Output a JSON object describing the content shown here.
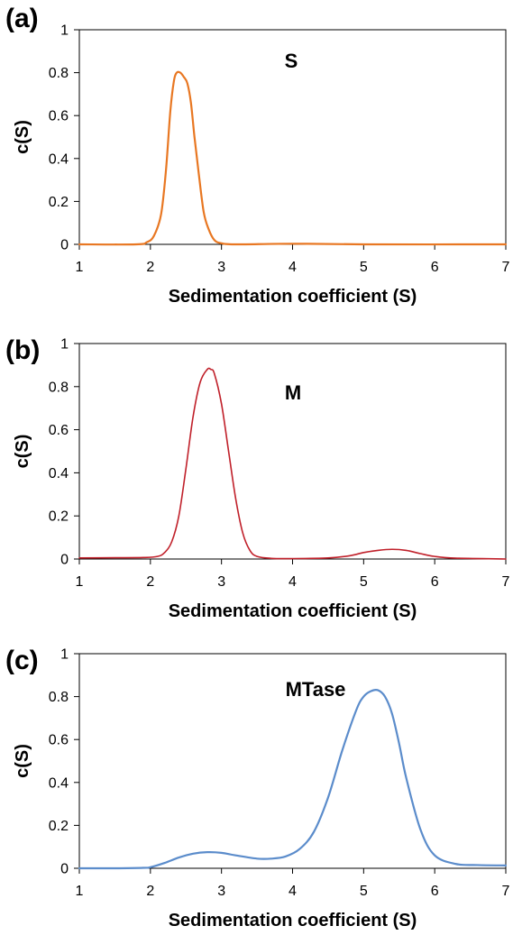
{
  "chart_data": [
    {
      "type": "line",
      "panel_label": "(a)",
      "annotation": "S",
      "xlabel": "Sedimentation coefficient (S)",
      "ylabel": "c(S)",
      "xlim": [
        1,
        7
      ],
      "ylim": [
        0,
        1
      ],
      "x_ticks": [
        "1",
        "2",
        "3",
        "4",
        "5",
        "6",
        "7"
      ],
      "y_ticks": [
        "0",
        "0.2",
        "0.4",
        "0.6",
        "0.8",
        "1"
      ],
      "grid": false,
      "series": [
        {
          "color": "#E87722",
          "line_width": 2.2,
          "x": [
            1.0,
            1.8,
            1.95,
            2.05,
            2.15,
            2.22,
            2.28,
            2.33,
            2.37,
            2.42,
            2.47,
            2.52,
            2.57,
            2.62,
            2.68,
            2.75,
            2.82,
            2.9,
            3.0,
            3.2,
            4.0,
            5.0,
            7.0
          ],
          "y": [
            0.0,
            0.0,
            0.01,
            0.04,
            0.14,
            0.35,
            0.62,
            0.76,
            0.8,
            0.8,
            0.78,
            0.75,
            0.66,
            0.5,
            0.33,
            0.15,
            0.07,
            0.02,
            0.005,
            0.0,
            0.003,
            0.0,
            0.0
          ]
        }
      ]
    },
    {
      "type": "line",
      "panel_label": "(b)",
      "annotation": "M",
      "xlabel": "Sedimentation coefficient (S)",
      "ylabel": "c(S)",
      "xlim": [
        1,
        7
      ],
      "ylim": [
        0,
        1
      ],
      "x_ticks": [
        "1",
        "2",
        "3",
        "4",
        "5",
        "6",
        "7"
      ],
      "y_ticks": [
        "0",
        "0.2",
        "0.4",
        "0.6",
        "0.8",
        "1"
      ],
      "grid": false,
      "series": [
        {
          "color": "#C0202A",
          "line_width": 1.6,
          "x": [
            1.0,
            1.5,
            1.9,
            2.1,
            2.2,
            2.3,
            2.4,
            2.5,
            2.6,
            2.7,
            2.8,
            2.85,
            2.9,
            3.0,
            3.1,
            3.2,
            3.3,
            3.4,
            3.5,
            3.7,
            4.0,
            4.5,
            4.8,
            5.0,
            5.2,
            5.4,
            5.6,
            5.8,
            6.0,
            6.3,
            7.0
          ],
          "y": [
            0.005,
            0.006,
            0.007,
            0.012,
            0.03,
            0.08,
            0.2,
            0.42,
            0.66,
            0.82,
            0.88,
            0.88,
            0.86,
            0.72,
            0.5,
            0.28,
            0.12,
            0.04,
            0.012,
            0.003,
            0.002,
            0.005,
            0.015,
            0.03,
            0.04,
            0.045,
            0.04,
            0.025,
            0.012,
            0.004,
            0.0
          ]
        }
      ]
    },
    {
      "type": "line",
      "panel_label": "(c)",
      "annotation": "MTase",
      "xlabel": "Sedimentation coefficient (S)",
      "ylabel": "c(S)",
      "xlim": [
        1,
        7
      ],
      "ylim": [
        0,
        1
      ],
      "x_ticks": [
        "1",
        "2",
        "3",
        "4",
        "5",
        "6",
        "7"
      ],
      "y_ticks": [
        "0",
        "0.2",
        "0.4",
        "0.6",
        "0.8",
        "1"
      ],
      "grid": false,
      "series": [
        {
          "color": "#5B8CCB",
          "line_width": 2.2,
          "x": [
            1.0,
            1.5,
            1.9,
            2.0,
            2.2,
            2.4,
            2.6,
            2.8,
            3.0,
            3.2,
            3.5,
            3.7,
            3.9,
            4.1,
            4.3,
            4.5,
            4.7,
            4.9,
            5.0,
            5.1,
            5.2,
            5.3,
            5.4,
            5.5,
            5.6,
            5.8,
            6.0,
            6.3,
            6.6,
            7.0
          ],
          "y": [
            0.0,
            0.0,
            0.002,
            0.005,
            0.025,
            0.05,
            0.068,
            0.075,
            0.072,
            0.06,
            0.045,
            0.045,
            0.055,
            0.09,
            0.17,
            0.33,
            0.55,
            0.74,
            0.8,
            0.825,
            0.83,
            0.8,
            0.72,
            0.58,
            0.42,
            0.18,
            0.06,
            0.02,
            0.015,
            0.013
          ]
        }
      ]
    }
  ]
}
